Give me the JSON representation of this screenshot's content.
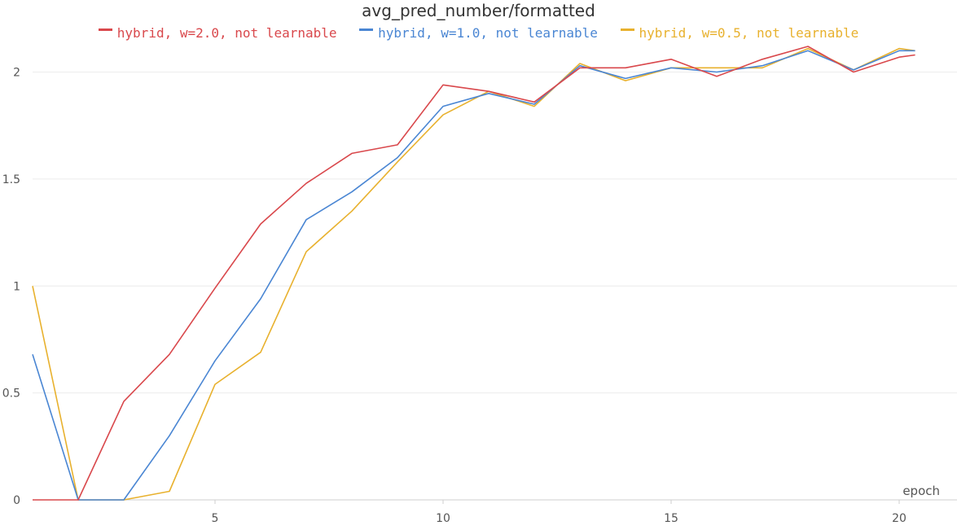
{
  "chart_data": {
    "type": "line",
    "title": "avg_pred_number/formatted",
    "xlabel": "epoch",
    "ylabel": "",
    "xlim": [
      1,
      21
    ],
    "ylim": [
      0,
      2.2
    ],
    "x_ticks": [
      5,
      10,
      15,
      20
    ],
    "y_ticks": [
      0,
      0.5,
      1,
      1.5,
      2
    ],
    "y_tick_labels": [
      "0",
      "0.5",
      "1",
      "1.5",
      "2"
    ],
    "x_tick_labels": [
      "5",
      "10",
      "15",
      "20"
    ],
    "grid": "horizontal",
    "legend_position": "top-center",
    "x": [
      1,
      2,
      3,
      4,
      5,
      6,
      7,
      8,
      9,
      10,
      11,
      12,
      13,
      14,
      15,
      16,
      17,
      18,
      19,
      20,
      20.35
    ],
    "series": [
      {
        "name": "hybrid, w=2.0, not learnable",
        "color": "#d9484c",
        "values": [
          0,
          0,
          0.46,
          0.68,
          0.99,
          1.29,
          1.48,
          1.62,
          1.66,
          1.94,
          1.91,
          1.86,
          2.02,
          2.02,
          2.06,
          1.98,
          2.06,
          2.12,
          2.0,
          2.07,
          2.08
        ]
      },
      {
        "name": "hybrid, w=1.0, not learnable",
        "color": "#4a86d3",
        "values": [
          0.68,
          0,
          0,
          0.3,
          0.65,
          0.94,
          1.31,
          1.44,
          1.6,
          1.84,
          1.9,
          1.85,
          2.03,
          1.97,
          2.02,
          2.0,
          2.03,
          2.1,
          2.01,
          2.1,
          2.1
        ]
      },
      {
        "name": "hybrid, w=0.5, not learnable",
        "color": "#e8b12e",
        "values": [
          1.0,
          0,
          0,
          0.04,
          0.54,
          0.69,
          1.16,
          1.35,
          1.58,
          1.8,
          1.91,
          1.84,
          2.04,
          1.96,
          2.02,
          2.02,
          2.02,
          2.11,
          2.01,
          2.11,
          2.1
        ]
      }
    ]
  }
}
